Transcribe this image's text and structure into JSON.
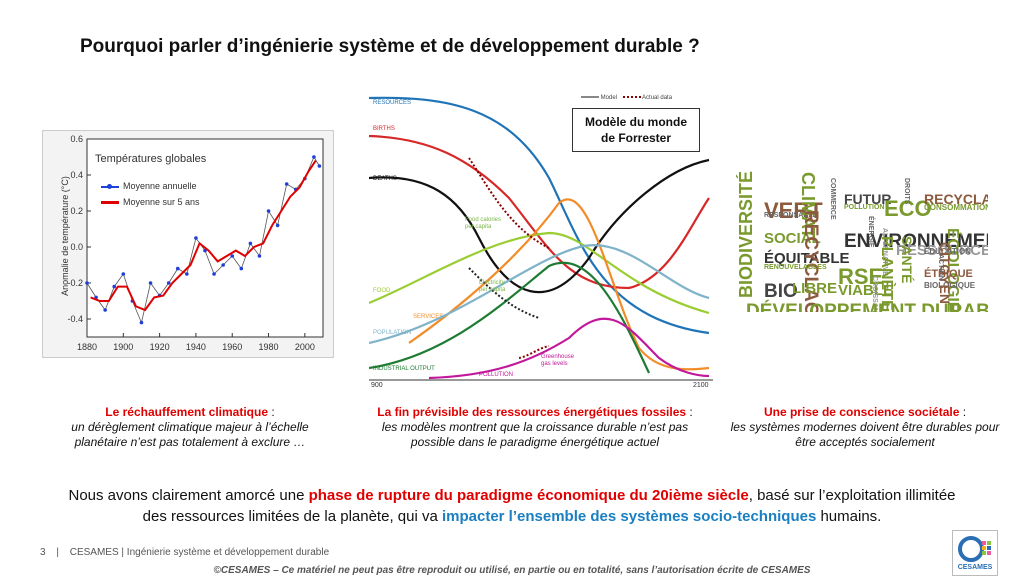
{
  "title": "Pourquoi parler d’ingénierie système et de développement durable ?",
  "temp_chart": {
    "legend_title": "Températures globales",
    "legend_annual": "Moyenne annuelle",
    "legend_5yr": "Moyenne sur 5 ans",
    "ylabel": "Anomalie de température (°C)",
    "yticks": [
      "0.6",
      "0.4",
      "0.2",
      "0.0",
      "-0.2",
      "-0.4"
    ],
    "xticks": [
      "1880",
      "1900",
      "1920",
      "1940",
      "1960",
      "1980",
      "2000"
    ],
    "colors": {
      "annual": "#1f3fd8",
      "smooth": "#e00000"
    }
  },
  "chart_data": {
    "type": "line",
    "title": "Températures globales",
    "ylabel": "Anomalie de température (°C)",
    "xlim": [
      1880,
      2010
    ],
    "ylim": [
      -0.5,
      0.6
    ],
    "series": [
      {
        "name": "Moyenne annuelle",
        "x": [
          1880,
          1885,
          1890,
          1895,
          1900,
          1905,
          1910,
          1915,
          1920,
          1925,
          1930,
          1935,
          1940,
          1945,
          1950,
          1955,
          1960,
          1965,
          1970,
          1975,
          1980,
          1985,
          1990,
          1995,
          2000,
          2005,
          2008
        ],
        "values": [
          -0.2,
          -0.28,
          -0.35,
          -0.22,
          -0.15,
          -0.3,
          -0.42,
          -0.2,
          -0.27,
          -0.2,
          -0.12,
          -0.15,
          0.05,
          -0.02,
          -0.15,
          -0.1,
          -0.05,
          -0.12,
          0.02,
          -0.05,
          0.2,
          0.12,
          0.35,
          0.32,
          0.38,
          0.5,
          0.45
        ]
      },
      {
        "name": "Moyenne sur 5 ans",
        "x": [
          1882,
          1887,
          1892,
          1897,
          1902,
          1907,
          1912,
          1917,
          1922,
          1927,
          1932,
          1937,
          1942,
          1947,
          1952,
          1957,
          1962,
          1967,
          1972,
          1977,
          1982,
          1987,
          1992,
          1997,
          2002,
          2006
        ],
        "values": [
          -0.28,
          -0.3,
          -0.3,
          -0.22,
          -0.22,
          -0.33,
          -0.35,
          -0.28,
          -0.27,
          -0.2,
          -0.15,
          -0.1,
          0.02,
          -0.02,
          -0.08,
          -0.05,
          -0.02,
          -0.05,
          0.0,
          0.02,
          0.12,
          0.2,
          0.28,
          0.33,
          0.42,
          0.48
        ]
      }
    ]
  },
  "forrester": {
    "box_title_line1": "Modèle du monde",
    "box_title_line2": "de Forrester",
    "legend_model": "Model",
    "legend_actual": "Actual data",
    "labels": {
      "resources": "RESOURCES",
      "births": "BIRTHS",
      "deaths": "DEATHS",
      "food": "FOOD",
      "population": "POPULATION",
      "industrial": "INDUSTRIAL OUTPUT",
      "services": "SERVICES",
      "pollution": "POLLUTION",
      "food_cal": "Food calories\nper capita",
      "electricity": "Electricity\nper capita",
      "greenhouse": "Greenhouse\ngas levels"
    },
    "x_start": "900",
    "x_end": "2100"
  },
  "word_cloud": [
    {
      "text": "BIODIVERSITÉ",
      "color": "#7a9a2e"
    },
    {
      "text": "VERT",
      "color": "#8c5a3c"
    },
    {
      "text": "RESPONSABLE",
      "color": "#666"
    },
    {
      "text": "SOCIAL",
      "color": "#7a9a2e"
    },
    {
      "text": "CLIMAT",
      "color": "#7a9a2e"
    },
    {
      "text": "COMMERCE",
      "color": "#666"
    },
    {
      "text": "FUTUR",
      "color": "#444"
    },
    {
      "text": "POLLUTION",
      "color": "#7a9a2e"
    },
    {
      "text": "ECO",
      "color": "#7a9a2e"
    },
    {
      "text": "DROITS",
      "color": "#666"
    },
    {
      "text": "RECYCLAGE",
      "color": "#8c5a3c"
    },
    {
      "text": "CONSOMMATION",
      "color": "#7a9a2e"
    },
    {
      "text": "ENVIRONNEMENT",
      "color": "#333"
    },
    {
      "text": "ÉQUITABLE",
      "color": "#333"
    },
    {
      "text": "RECYCLAGE",
      "color": "#8c5a3c"
    },
    {
      "text": "ÉNERGIE",
      "color": "#666"
    },
    {
      "text": "RESSOURCES",
      "color": "#999"
    },
    {
      "text": "ÉCOLOGIE",
      "color": "#7a9a2e"
    },
    {
      "text": "RENOUVELABLES",
      "color": "#7a9a2e"
    },
    {
      "text": "RSE",
      "color": "#7a9a2e"
    },
    {
      "text": "ALTERNATIVE",
      "color": "#999"
    },
    {
      "text": "PLANÈTE",
      "color": "#7a9a2e"
    },
    {
      "text": "SANTÉ",
      "color": "#7a9a2e"
    },
    {
      "text": "ÉDUCATION",
      "color": "#666"
    },
    {
      "text": "BIO",
      "color": "#444"
    },
    {
      "text": "LIBRE",
      "color": "#7a9a2e"
    },
    {
      "text": "VIABLE",
      "color": "#7a9a2e"
    },
    {
      "text": "ÉTHIQUE",
      "color": "#8c5a3c"
    },
    {
      "text": "BIOLOGIQUE",
      "color": "#666"
    },
    {
      "text": "CITOYEN",
      "color": "#8c5a3c"
    },
    {
      "text": "CROISSANCE",
      "color": "#999"
    },
    {
      "text": "DÉVELOPPEMENT DURABLE",
      "color": "#7a9a2e"
    },
    {
      "text": "ACTION",
      "color": "#666"
    }
  ],
  "captions": [
    {
      "head": "Le réchauffement climatique",
      "tail": " :",
      "body": "un dérèglement climatique majeur à l’échelle planétaire n’est pas totalement à exclure …"
    },
    {
      "head": "La fin prévisible des ressources énergétiques fossiles",
      "tail": " :",
      "body": "les modèles montrent que la croissance durable n’est pas possible dans le paradigme énergétique actuel"
    },
    {
      "head": "Une prise de conscience sociétale",
      "tail": " :",
      "body": "les systèmes modernes doivent être durables pour être acceptés socialement"
    }
  ],
  "main": {
    "part1": "Nous avons clairement amorcé une ",
    "part2": "phase de rupture du paradigme économique du 20ième siècle",
    "part3": ", basé sur l’exploitation illimitée des ressources limitées de la planète, qui va ",
    "part4": "impacter l’ensemble des systèmes socio-techniques",
    "part5": " humains."
  },
  "footer": {
    "page": "3",
    "sep": "|",
    "text": "CESAMES | Ingénierie système et développement durable"
  },
  "copyright": "©CESAMES – Ce matériel ne peut pas être reproduit ou utilisé, en partie ou en totalité, sans l’autorisation écrite de CESAMES",
  "logo_text": "CESAMES"
}
